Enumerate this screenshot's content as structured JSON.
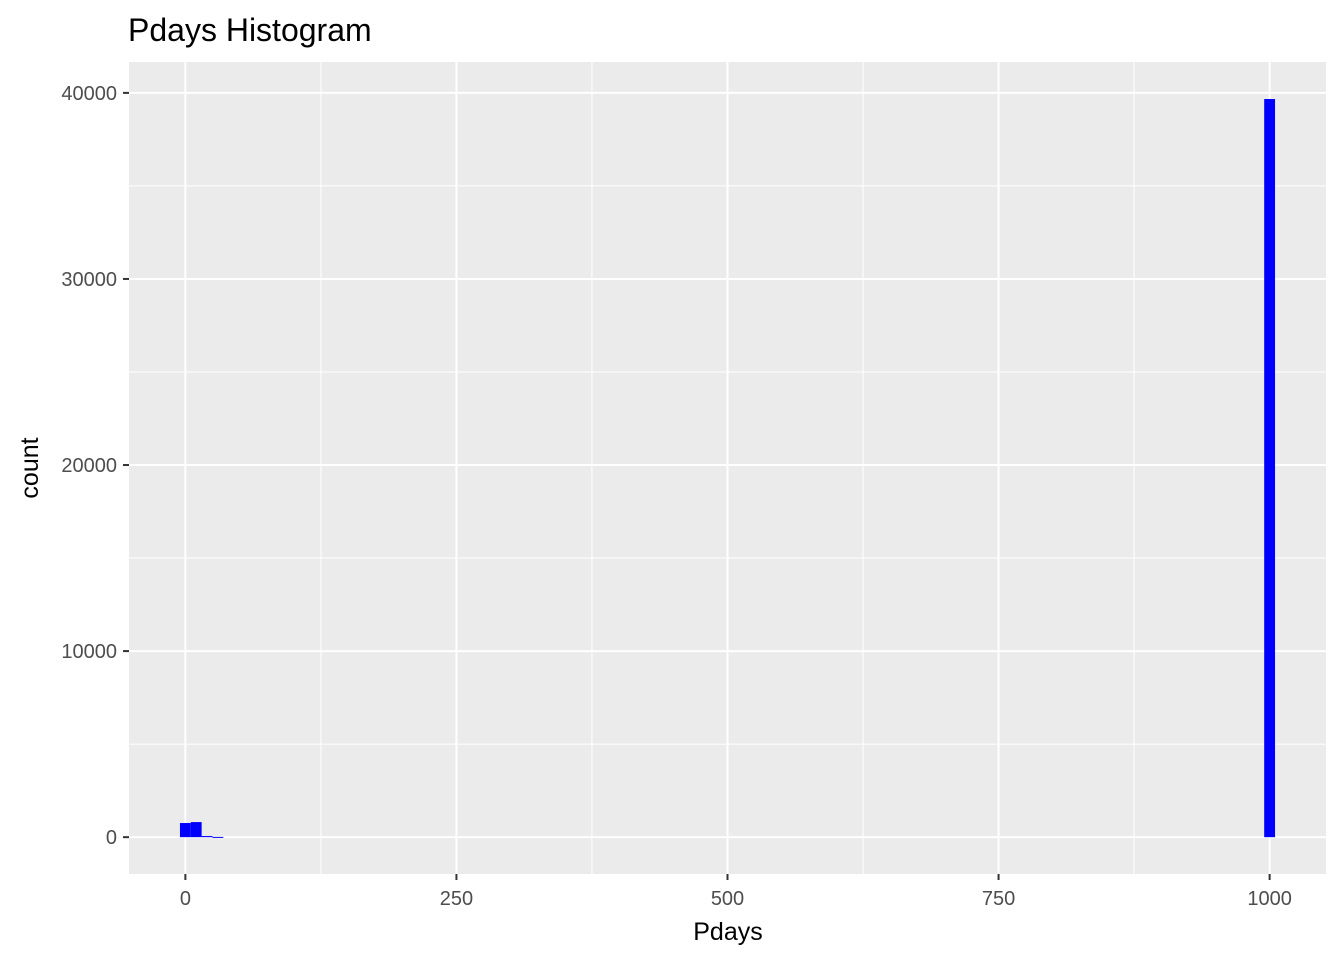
{
  "chart_data": {
    "type": "bar",
    "title": "Pdays Histogram",
    "xlabel": "Pdays",
    "ylabel": "count",
    "xlim": [
      -52,
      1052
    ],
    "ylim": [
      -1980,
      41660
    ],
    "x_ticks": [
      0,
      250,
      500,
      750,
      1000
    ],
    "y_ticks": [
      0,
      10000,
      20000,
      30000,
      40000
    ],
    "x_minor": [
      125,
      375,
      625,
      875
    ],
    "y_minor": [
      5000,
      15000,
      25000,
      35000
    ],
    "bar_color": "#0000ff",
    "panel_background": "#ebebeb",
    "grid": true,
    "bin_width": 10,
    "bins": [
      {
        "x0": -5,
        "x1": 5,
        "count": 760
      },
      {
        "x0": 5,
        "x1": 15,
        "count": 810
      },
      {
        "x0": 15,
        "x1": 25,
        "count": 60
      },
      {
        "x0": 25,
        "x1": 35,
        "count": 15
      },
      {
        "x0": 995,
        "x1": 1005,
        "count": 39670
      }
    ]
  }
}
